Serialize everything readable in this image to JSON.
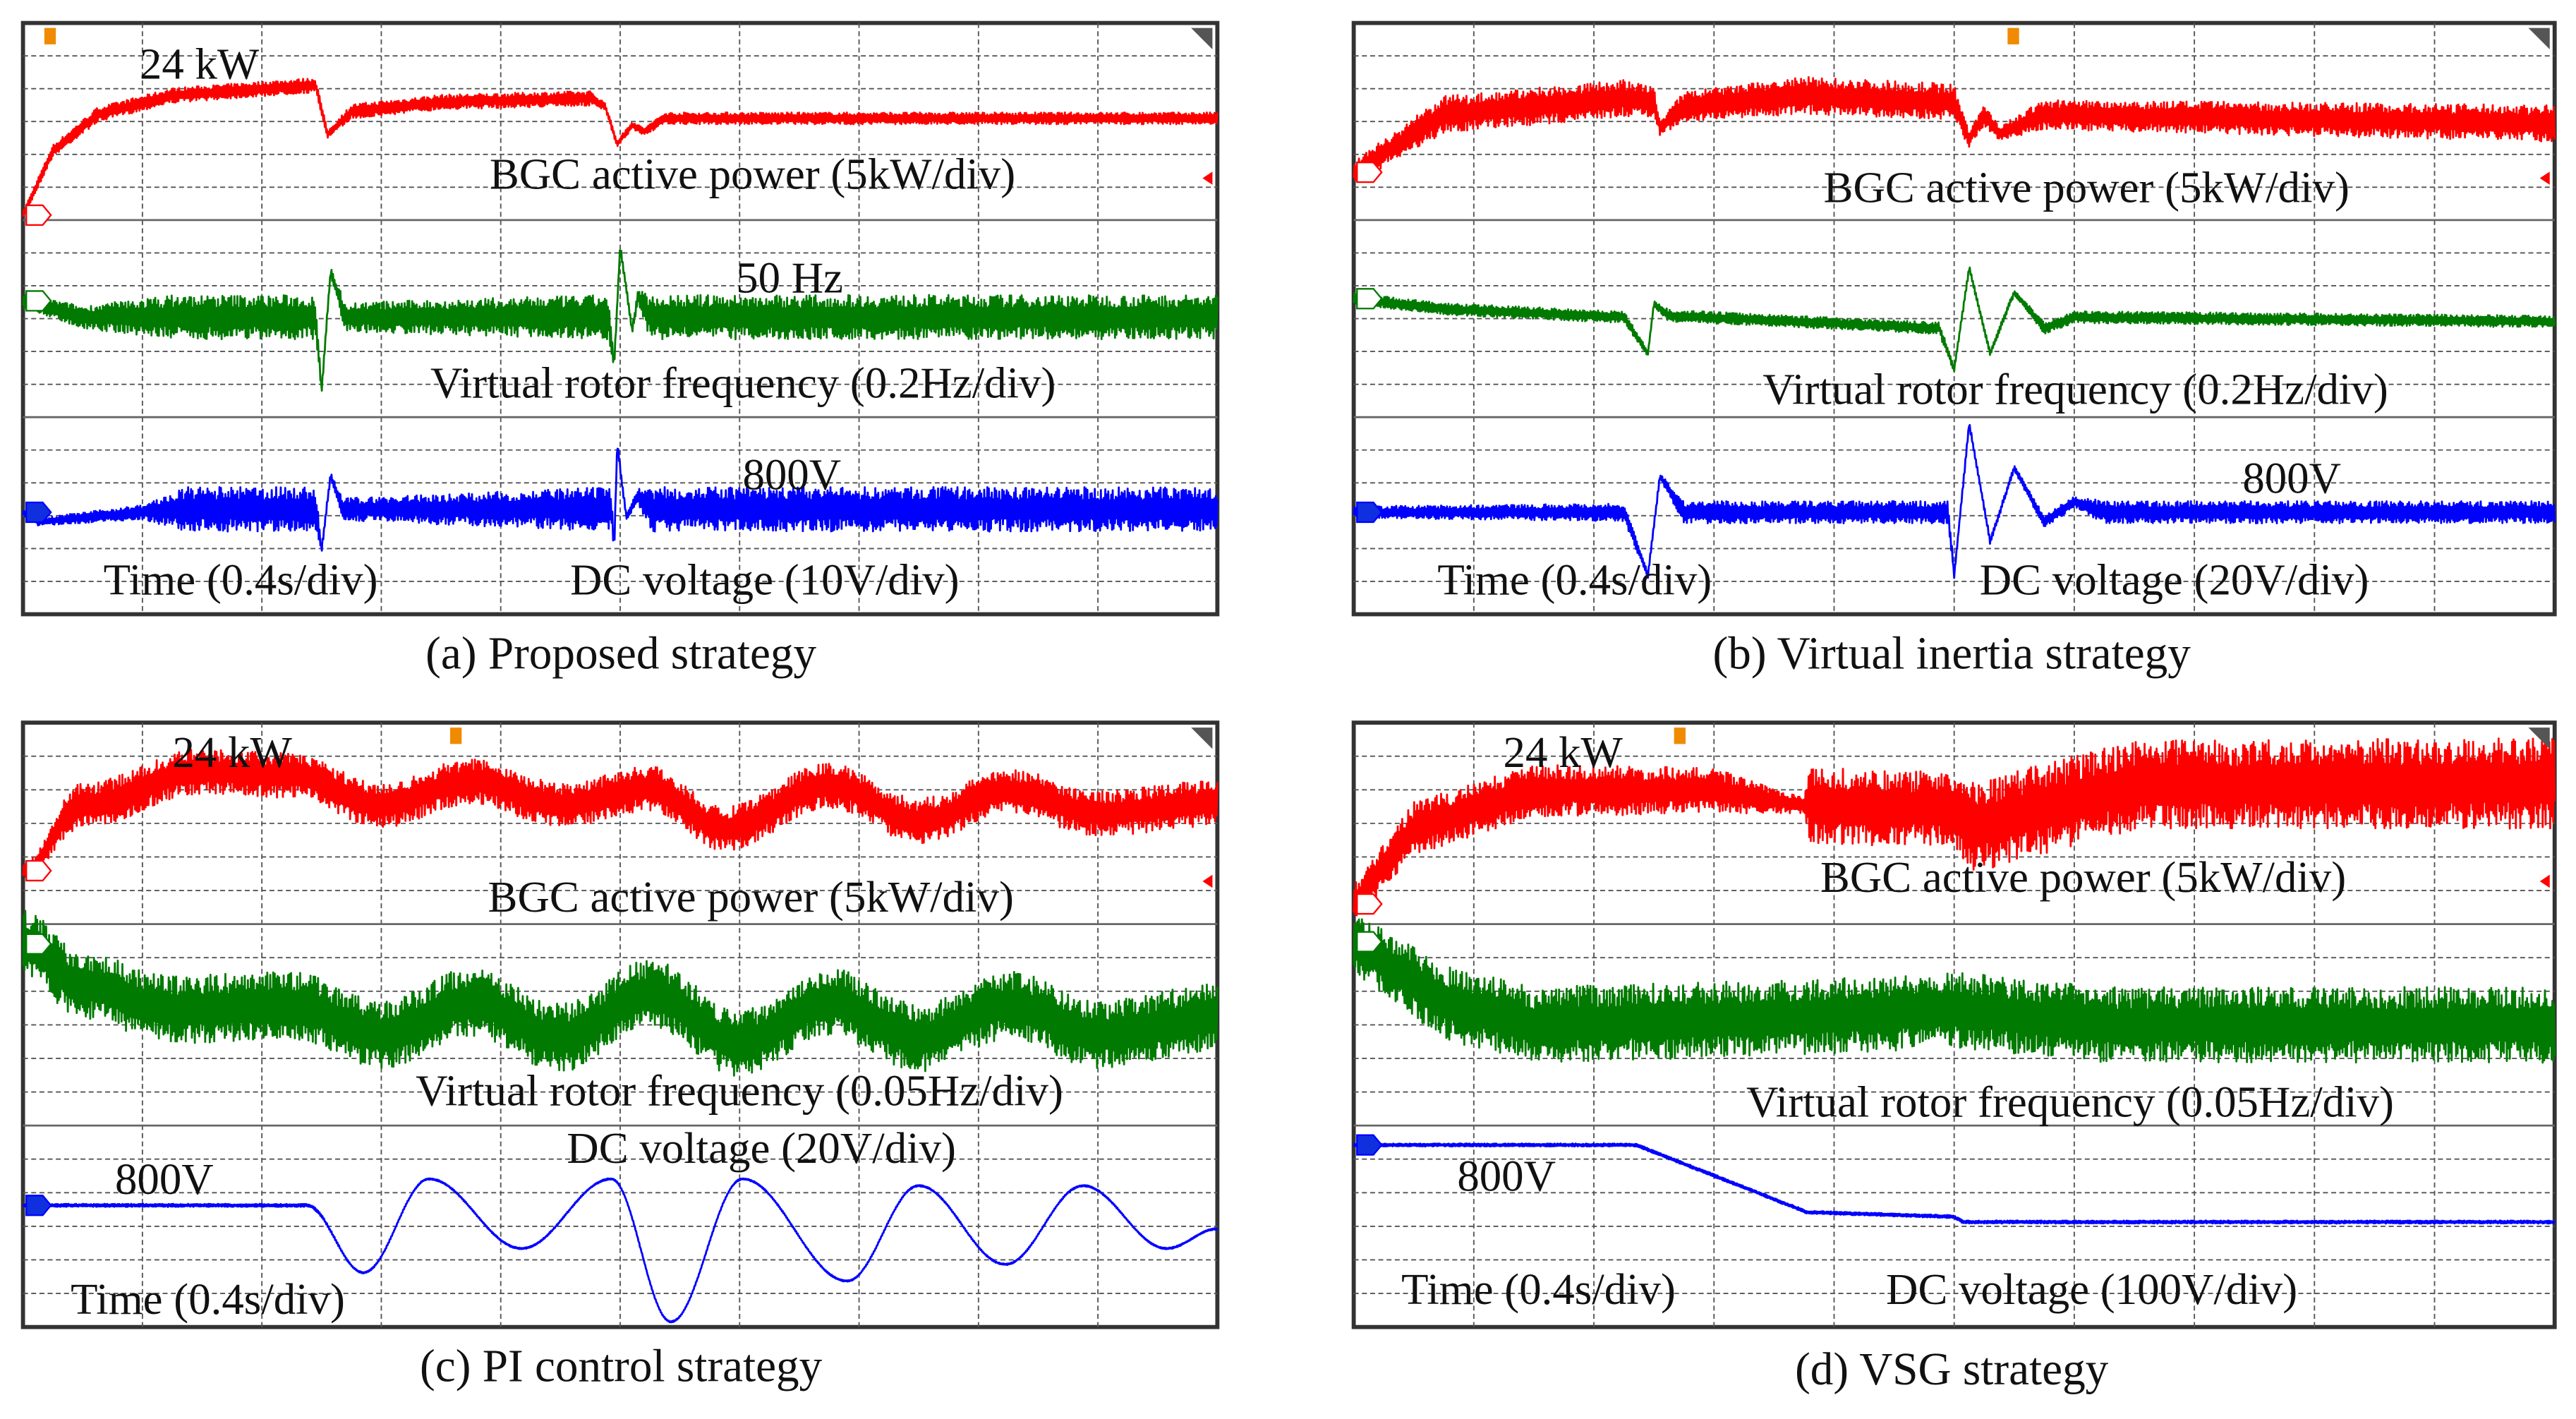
{
  "chart_data": [
    {
      "type": "line",
      "title": "(a) Proposed strategy",
      "xlabel": "Time (0.4s/div)",
      "xlim": [
        0,
        4
      ],
      "ylim_div": [
        0,
        8
      ],
      "annotations": {
        "power_peak": "24 kW",
        "freq_ref": "50 Hz",
        "volt_ref": "800V"
      },
      "labels": {
        "power": "BGC active power (5kW/div)",
        "freq": "Virtual rotor frequency (0.2Hz/div)",
        "volt": "DC voltage (10V/div)"
      },
      "series": [
        {
          "name": "BGC active power",
          "color": "#ff0000",
          "smooth": false,
          "points": [
            [
              0,
              5.4,
              0.05
            ],
            [
              0.1,
              6.27,
              0.08
            ],
            [
              0.25,
              6.76,
              0.1
            ],
            [
              0.5,
              7.02,
              0.1
            ],
            [
              0.98,
              7.16,
              0.1
            ],
            [
              1.02,
              6.49,
              0.05
            ],
            [
              1.1,
              6.8,
              0.1
            ],
            [
              1.4,
              6.93,
              0.1
            ],
            [
              1.9,
              6.98,
              0.1
            ],
            [
              1.95,
              6.87,
              0.05
            ],
            [
              1.99,
              6.36,
              0.05
            ],
            [
              2.04,
              6.62,
              0.05
            ],
            [
              2.08,
              6.53,
              0.05
            ],
            [
              2.15,
              6.71,
              0.08
            ],
            [
              4,
              6.71,
              0.08
            ]
          ]
        },
        {
          "name": "Virtual rotor frequency",
          "color": "#007a00",
          "smooth": false,
          "points": [
            [
              0,
              4.24,
              0.1
            ],
            [
              0.2,
              4.02,
              0.15
            ],
            [
              0.5,
              4.02,
              0.3
            ],
            [
              0.98,
              4.02,
              0.3
            ],
            [
              1.0,
              3.02,
              0.05
            ],
            [
              1.03,
              4.64,
              0.05
            ],
            [
              1.08,
              4.02,
              0.2
            ],
            [
              1.96,
              4.02,
              0.3
            ],
            [
              1.98,
              3.38,
              0.05
            ],
            [
              2.0,
              4.98,
              0.05
            ],
            [
              2.04,
              3.85,
              0.05
            ],
            [
              2.06,
              4.3,
              0.1
            ],
            [
              2.1,
              4.02,
              0.3
            ],
            [
              4,
              4.02,
              0.3
            ]
          ]
        },
        {
          "name": "DC voltage",
          "color": "#0000ff",
          "smooth": false,
          "points": [
            [
              0,
              1.38,
              0.05
            ],
            [
              0.05,
              1.25,
              0.05
            ],
            [
              0.4,
              1.38,
              0.1
            ],
            [
              0.55,
              1.42,
              0.3
            ],
            [
              0.98,
              1.42,
              0.3
            ],
            [
              1.0,
              0.87,
              0.05
            ],
            [
              1.03,
              1.87,
              0.05
            ],
            [
              1.07,
              1.42,
              0.15
            ],
            [
              1.97,
              1.42,
              0.3
            ],
            [
              1.98,
              0.87,
              0.05
            ],
            [
              1.99,
              2.31,
              0.05
            ],
            [
              2.02,
              1.32,
              0.05
            ],
            [
              2.06,
              1.6,
              0.1
            ],
            [
              2.1,
              1.42,
              0.3
            ],
            [
              4,
              1.42,
              0.3
            ]
          ]
        }
      ]
    },
    {
      "type": "line",
      "title": "(b) Virtual inertia strategy",
      "xlabel": "Time (0.4s/div)",
      "xlim": [
        0,
        4
      ],
      "ylim_div": [
        0,
        8
      ],
      "annotations": {
        "volt_ref": "800V"
      },
      "labels": {
        "power": "BGC active power (5kW/div)",
        "freq": "Virtual rotor frequency (0.2Hz/div)",
        "volt": "DC voltage (20V/div)"
      },
      "series": [
        {
          "name": "BGC active power",
          "color": "#ff0000",
          "smooth": false,
          "points": [
            [
              0,
              5.98,
              0.15
            ],
            [
              0.3,
              6.76,
              0.25
            ],
            [
              0.9,
              6.98,
              0.25
            ],
            [
              1.0,
              6.93,
              0.2
            ],
            [
              1.02,
              6.58,
              0.1
            ],
            [
              1.1,
              6.87,
              0.2
            ],
            [
              1.5,
              7.02,
              0.25
            ],
            [
              2.0,
              6.93,
              0.25
            ],
            [
              2.05,
              6.42,
              0.1
            ],
            [
              2.1,
              6.76,
              0.15
            ],
            [
              2.15,
              6.5,
              0.1
            ],
            [
              2.3,
              6.76,
              0.2
            ],
            [
              4,
              6.64,
              0.25
            ]
          ]
        },
        {
          "name": "Virtual rotor frequency",
          "color": "#007a00",
          "smooth": false,
          "points": [
            [
              0,
              4.27,
              0.08
            ],
            [
              0.3,
              4.13,
              0.08
            ],
            [
              0.9,
              4.02,
              0.08
            ],
            [
              0.98,
              3.53,
              0.04
            ],
            [
              1.0,
              4.2,
              0.04
            ],
            [
              1.05,
              4.04,
              0.08
            ],
            [
              1.95,
              3.87,
              0.08
            ],
            [
              2.0,
              3.31,
              0.04
            ],
            [
              2.05,
              4.69,
              0.04
            ],
            [
              2.12,
              3.53,
              0.04
            ],
            [
              2.2,
              4.36,
              0.04
            ],
            [
              2.3,
              3.87,
              0.08
            ],
            [
              2.4,
              4.02,
              0.08
            ],
            [
              4,
              3.96,
              0.08
            ]
          ]
        },
        {
          "name": "DC voltage",
          "color": "#0000ff",
          "smooth": false,
          "points": [
            [
              0,
              1.38,
              0.08
            ],
            [
              0.9,
              1.38,
              0.12
            ],
            [
              0.98,
              0.53,
              0.04
            ],
            [
              1.02,
              1.87,
              0.04
            ],
            [
              1.1,
              1.38,
              0.15
            ],
            [
              1.98,
              1.38,
              0.15
            ],
            [
              2.0,
              0.53,
              0.04
            ],
            [
              2.05,
              2.58,
              0.04
            ],
            [
              2.12,
              0.98,
              0.04
            ],
            [
              2.2,
              1.98,
              0.04
            ],
            [
              2.3,
              1.25,
              0.08
            ],
            [
              2.4,
              1.52,
              0.08
            ],
            [
              2.5,
              1.38,
              0.15
            ],
            [
              4,
              1.38,
              0.15
            ]
          ]
        }
      ]
    },
    {
      "type": "line",
      "title": "(c) PI control strategy",
      "xlabel": "Time (0.4s/div)",
      "xlim": [
        0,
        4
      ],
      "ylim_div": [
        0,
        8
      ],
      "annotations": {
        "power_peak": "24 kW",
        "volt_ref": "800V"
      },
      "labels": {
        "power": "BGC active power (5kW/div)",
        "freq": "Virtual rotor frequency (0.05Hz/div)",
        "volt": "DC voltage (20V/div)"
      },
      "series": [
        {
          "name": "BGC active power",
          "color": "#ff0000",
          "smooth": true,
          "points": [
            [
              0,
              6.04,
              0.1
            ],
            [
              0.2,
              6.91,
              0.3
            ],
            [
              0.6,
              7.35,
              0.3
            ],
            [
              0.9,
              7.3,
              0.3
            ],
            [
              1.2,
              6.91,
              0.3
            ],
            [
              1.5,
              7.22,
              0.3
            ],
            [
              1.8,
              6.91,
              0.3
            ],
            [
              2.1,
              7.13,
              0.3
            ],
            [
              2.35,
              6.59,
              0.3
            ],
            [
              2.7,
              7.17,
              0.3
            ],
            [
              3.0,
              6.7,
              0.3
            ],
            [
              3.3,
              7.09,
              0.3
            ],
            [
              3.6,
              6.8,
              0.3
            ],
            [
              4,
              6.93,
              0.3
            ]
          ]
        },
        {
          "name": "Virtual rotor frequency",
          "color": "#007a00",
          "smooth": true,
          "points": [
            [
              0,
              5.07,
              0.45
            ],
            [
              0.2,
              4.52,
              0.45
            ],
            [
              0.5,
              4.2,
              0.45
            ],
            [
              0.9,
              4.26,
              0.45
            ],
            [
              1.2,
              3.87,
              0.45
            ],
            [
              1.5,
              4.3,
              0.45
            ],
            [
              1.8,
              3.83,
              0.45
            ],
            [
              2.1,
              4.41,
              0.45
            ],
            [
              2.4,
              3.76,
              0.45
            ],
            [
              2.7,
              4.3,
              0.45
            ],
            [
              3.0,
              3.83,
              0.45
            ],
            [
              3.3,
              4.26,
              0.45
            ],
            [
              3.6,
              3.87,
              0.45
            ],
            [
              4,
              4.09,
              0.45
            ]
          ]
        },
        {
          "name": "DC voltage",
          "color": "#0000ff",
          "smooth": true,
          "points": [
            [
              0,
              1.61,
              0.02
            ],
            [
              0.95,
              1.61,
              0.02
            ],
            [
              1.14,
              0.72,
              0.01
            ],
            [
              1.36,
              1.96,
              0.01
            ],
            [
              1.67,
              1.04,
              0.01
            ],
            [
              1.97,
              1.96,
              0.01
            ],
            [
              2.17,
              0.07,
              0.01
            ],
            [
              2.41,
              1.96,
              0.01
            ],
            [
              2.76,
              0.61,
              0.01
            ],
            [
              3.0,
              1.87,
              0.01
            ],
            [
              3.29,
              0.83,
              0.01
            ],
            [
              3.55,
              1.87,
              0.01
            ],
            [
              3.83,
              1.04,
              0.01
            ],
            [
              4,
              1.3,
              0.01
            ]
          ]
        }
      ]
    },
    {
      "type": "line",
      "title": "(d) VSG strategy",
      "xlabel": "Time (0.4s/div)",
      "xlim": [
        0,
        4
      ],
      "ylim_div": [
        0,
        8
      ],
      "annotations": {
        "power_peak": "24 kW",
        "volt_ref": "800V"
      },
      "labels": {
        "power": "BGC active power (5kW/div)",
        "freq": "Virtual rotor frequency (0.05Hz/div)",
        "volt": "DC voltage (100V/div)"
      },
      "series": [
        {
          "name": "BGC active power",
          "color": "#ff0000",
          "smooth": false,
          "points": [
            [
              0,
              5.6,
              0.25
            ],
            [
              0.2,
              6.6,
              0.35
            ],
            [
              0.6,
              7.1,
              0.35
            ],
            [
              1.2,
              7.1,
              0.3
            ],
            [
              1.5,
              6.9,
              0.1
            ],
            [
              1.52,
              6.9,
              0.5
            ],
            [
              2.0,
              6.85,
              0.5
            ],
            [
              2.05,
              6.6,
              0.6
            ],
            [
              2.6,
              7.17,
              0.59
            ],
            [
              4,
              7.2,
              0.6
            ]
          ]
        },
        {
          "name": "Virtual rotor frequency",
          "color": "#007a00",
          "smooth": false,
          "points": [
            [
              0,
              5.1,
              0.4
            ],
            [
              0.3,
              4.3,
              0.5
            ],
            [
              0.6,
              4.0,
              0.5
            ],
            [
              1.5,
              4.1,
              0.5
            ],
            [
              2.0,
              4.2,
              0.5
            ],
            [
              2.5,
              4.0,
              0.5
            ],
            [
              4,
              4.0,
              0.5
            ]
          ]
        },
        {
          "name": "DC voltage",
          "color": "#0000ff",
          "smooth": false,
          "points": [
            [
              0,
              2.41,
              0.02
            ],
            [
              0.94,
              2.41,
              0.02
            ],
            [
              1.51,
              1.52,
              0.02
            ],
            [
              2.0,
              1.46,
              0.02
            ],
            [
              2.03,
              1.39,
              0.02
            ],
            [
              4,
              1.39,
              0.02
            ]
          ]
        }
      ]
    }
  ]
}
